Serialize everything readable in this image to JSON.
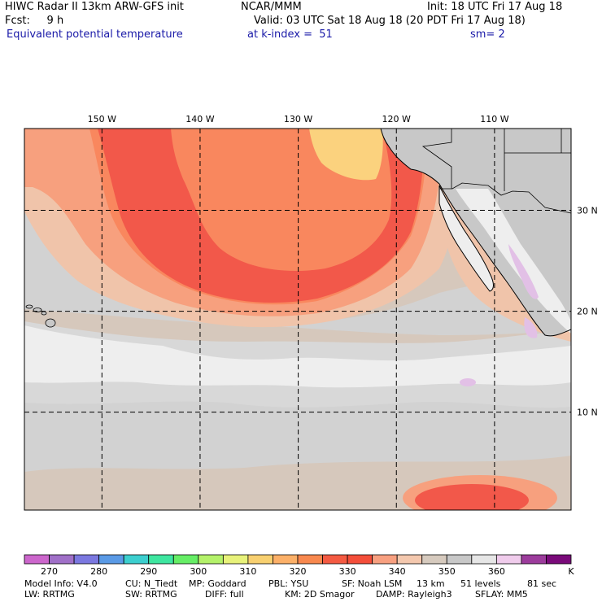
{
  "header": {
    "line1_left": "HIWC Radar II 13km ARW-GFS init",
    "line1_mid": "NCAR/MMM",
    "line1_right": "Init: 18 UTC Fri 17 Aug 18",
    "line2_left": "Fcst:     9 h",
    "line2_right": "Valid: 03 UTC Sat 18 Aug 18 (20 PDT Fri 17 Aug 18)",
    "line3_left": "Equivalent potential temperature",
    "line3_mid": "at k-index =  51",
    "line3_right": "sm= 2"
  },
  "map": {
    "lon_labels": [
      "150 W",
      "140 W",
      "130 W",
      "120 W",
      "110 W"
    ],
    "lat_labels": [
      "30 N",
      "20 N",
      "10 N"
    ],
    "lon_lines": [
      -150,
      -140,
      -130,
      -120,
      -110
    ],
    "lat_lines": [
      30,
      20,
      10
    ],
    "lon_range": [
      -157.9,
      -102.2
    ],
    "lat_range": [
      0.3,
      38.1
    ]
  },
  "colorbar": {
    "colors": [
      "#cc66cc",
      "#a070c8",
      "#7b78e0",
      "#5a9ae6",
      "#3ccfcf",
      "#3ee6a0",
      "#66ee66",
      "#b4f26a",
      "#e8f27a",
      "#f8d070",
      "#fcb068",
      "#f8884e",
      "#f45a42",
      "#f44e3a",
      "#f8a080",
      "#f4c8ae",
      "#d6cabe",
      "#c8c8c8",
      "#e6e6e6",
      "#f0ccec",
      "#9c3c9c",
      "#7a0a7a"
    ],
    "tick_labels": [
      "270",
      "280",
      "290",
      "300",
      "310",
      "320",
      "330",
      "340",
      "350",
      "360",
      "K"
    ]
  },
  "footer": {
    "line1": [
      "Model Info: V4.0",
      "CU: N_Tiedt",
      "MP: Goddard",
      "PBL: YSU",
      "SF: Noah LSM",
      "13 km",
      "51 levels",
      "81 sec"
    ],
    "line2": [
      "LW: RRTMG",
      "SW: RRTMG",
      "DIFF: full",
      "KM: 2D Smagor",
      "DAMP: Rayleigh3",
      "SFLAY: MM5"
    ]
  },
  "field_colors": {
    "white": "#eeeeee",
    "light_gray": "#d2d2d2",
    "tan": "#d6c8bc",
    "peach": "#f0c4aa",
    "salmon": "#f7a07e",
    "orange": "#f9875e",
    "red": "#f2584a",
    "yellow": "#fbd27e",
    "land": "#c8c8c8",
    "lilac": "#e2c0e6"
  }
}
